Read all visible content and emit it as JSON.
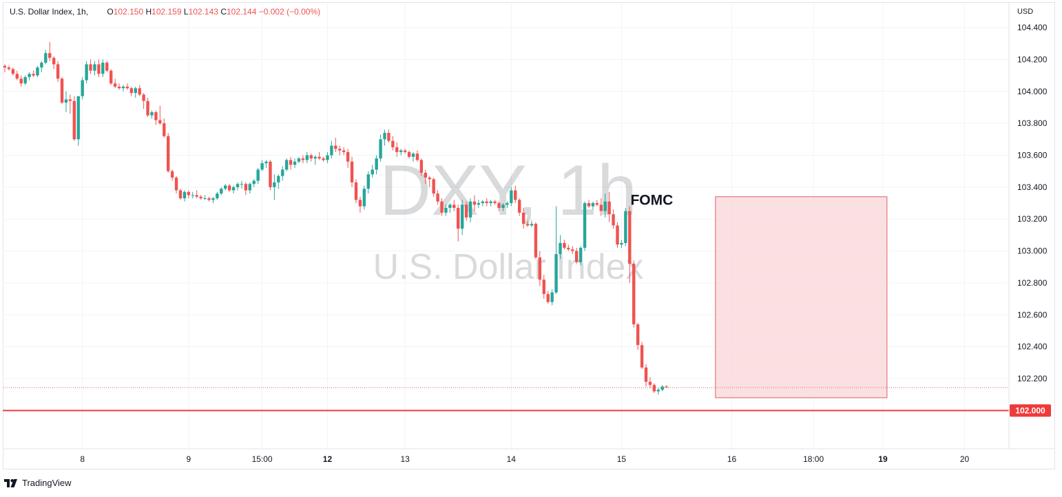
{
  "legend": {
    "symbol": "U.S. Dollar Index, 1h,",
    "o_label": "O",
    "o_value": "102.150",
    "h_label": "H",
    "h_value": "102.159",
    "l_label": "L",
    "l_value": "102.143",
    "c_label": "C",
    "c_value": "102.144",
    "change": "−0.002 (−0.00%)"
  },
  "watermark": {
    "line1": "DXY, 1h",
    "line2": "U.S. Dollar Index"
  },
  "annotation": {
    "text": "FOMC"
  },
  "branding": {
    "name": "TradingView"
  },
  "colors": {
    "up": "#26a69a",
    "down": "#ef5350",
    "support": "#ef3a3a",
    "box_fill": "#f9d6d8",
    "box_stroke": "#e06060"
  },
  "chart_data": {
    "type": "candlestick",
    "currency": "USD",
    "ylim": [
      101.76,
      104.56
    ],
    "yticks": [
      "104.400",
      "104.200",
      "104.000",
      "103.800",
      "103.600",
      "103.400",
      "103.200",
      "103.000",
      "102.800",
      "102.600",
      "102.400",
      "102.200"
    ],
    "xticks": [
      {
        "label": "8",
        "bar": 19,
        "bold": false
      },
      {
        "label": "9",
        "bar": 45,
        "bold": false
      },
      {
        "label": "15:00",
        "bar": 63,
        "bold": false
      },
      {
        "label": "12",
        "bar": 79,
        "bold": true
      },
      {
        "label": "13",
        "bar": 98,
        "bold": false
      },
      {
        "label": "14",
        "bar": 124,
        "bold": false
      },
      {
        "label": "15",
        "bar": 151,
        "bold": false
      },
      {
        "label": "16",
        "bar": 178,
        "bold": false
      },
      {
        "label": "18:00",
        "bar": 198,
        "bold": false
      },
      {
        "label": "19",
        "bar": 215,
        "bold": true
      },
      {
        "label": "20",
        "bar": 235,
        "bold": false
      }
    ],
    "support_level": {
      "value": 102.0,
      "label": "102.000"
    },
    "last_price": 102.144,
    "highlight_box": {
      "bar_start": 174,
      "bar_end": 216,
      "price_high": 103.34,
      "price_low": 102.08
    },
    "annotation_position": {
      "bar": 152,
      "price": 103.32
    },
    "series": [
      {
        "name": "DXY",
        "ohlc": [
          [
            104.16,
            104.17,
            104.12,
            104.15
          ],
          [
            104.15,
            104.16,
            104.13,
            104.14
          ],
          [
            104.14,
            104.15,
            104.1,
            104.11
          ],
          [
            104.11,
            104.13,
            104.07,
            104.08
          ],
          [
            104.08,
            104.1,
            104.03,
            104.05
          ],
          [
            104.05,
            104.1,
            104.04,
            104.09
          ],
          [
            104.09,
            104.12,
            104.07,
            104.11
          ],
          [
            104.11,
            104.13,
            104.09,
            104.1
          ],
          [
            104.1,
            104.16,
            104.09,
            104.15
          ],
          [
            104.15,
            104.19,
            104.12,
            104.18
          ],
          [
            104.18,
            104.26,
            104.17,
            104.24
          ],
          [
            104.24,
            104.31,
            104.19,
            104.21
          ],
          [
            104.21,
            104.22,
            104.14,
            104.17
          ],
          [
            104.17,
            104.19,
            104.06,
            104.08
          ],
          [
            104.08,
            104.09,
            103.92,
            103.93
          ],
          [
            103.93,
            104.0,
            103.87,
            103.95
          ],
          [
            103.95,
            103.98,
            103.86,
            103.94
          ],
          [
            103.94,
            103.97,
            103.69,
            103.7
          ],
          [
            103.7,
            103.97,
            103.66,
            103.97
          ],
          [
            103.97,
            104.09,
            103.95,
            104.07
          ],
          [
            104.07,
            104.19,
            104.05,
            104.17
          ],
          [
            104.17,
            104.2,
            104.11,
            104.13
          ],
          [
            104.13,
            104.19,
            104.1,
            104.17
          ],
          [
            104.17,
            104.2,
            104.09,
            104.11
          ],
          [
            104.11,
            104.2,
            104.09,
            104.18
          ],
          [
            104.18,
            104.19,
            104.12,
            104.13
          ],
          [
            104.13,
            104.14,
            104.04,
            104.05
          ],
          [
            104.05,
            104.08,
            104.02,
            104.03
          ],
          [
            104.03,
            104.05,
            104.01,
            104.02
          ],
          [
            104.02,
            104.04,
            104.0,
            104.03
          ],
          [
            104.03,
            104.05,
            104.01,
            104.02
          ],
          [
            104.02,
            104.03,
            103.97,
            103.99
          ],
          [
            103.99,
            104.03,
            103.96,
            104.02
          ],
          [
            104.02,
            104.04,
            103.97,
            103.98
          ],
          [
            103.98,
            103.99,
            103.89,
            103.94
          ],
          [
            103.94,
            103.96,
            103.84,
            103.85
          ],
          [
            103.85,
            103.88,
            103.83,
            103.87
          ],
          [
            103.87,
            103.88,
            103.79,
            103.82
          ],
          [
            103.82,
            103.91,
            103.79,
            103.8
          ],
          [
            103.8,
            103.83,
            103.71,
            103.72
          ],
          [
            103.72,
            103.74,
            103.49,
            103.5
          ],
          [
            103.5,
            103.51,
            103.44,
            103.46
          ],
          [
            103.46,
            103.47,
            103.36,
            103.38
          ],
          [
            103.38,
            103.39,
            103.32,
            103.33
          ],
          [
            103.33,
            103.38,
            103.31,
            103.37
          ],
          [
            103.37,
            103.38,
            103.33,
            103.35
          ],
          [
            103.35,
            103.37,
            103.33,
            103.35
          ],
          [
            103.35,
            103.38,
            103.33,
            103.34
          ],
          [
            103.34,
            103.35,
            103.32,
            103.33
          ],
          [
            103.33,
            103.35,
            103.32,
            103.33
          ],
          [
            103.33,
            103.34,
            103.31,
            103.32
          ],
          [
            103.32,
            103.34,
            103.3,
            103.33
          ],
          [
            103.33,
            103.37,
            103.32,
            103.36
          ],
          [
            103.36,
            103.4,
            103.35,
            103.39
          ],
          [
            103.39,
            103.42,
            103.38,
            103.41
          ],
          [
            103.41,
            103.42,
            103.37,
            103.38
          ],
          [
            103.38,
            103.41,
            103.36,
            103.4
          ],
          [
            103.4,
            103.43,
            103.38,
            103.42
          ],
          [
            103.42,
            103.44,
            103.39,
            103.42
          ],
          [
            103.42,
            103.43,
            103.35,
            103.38
          ],
          [
            103.38,
            103.43,
            103.36,
            103.42
          ],
          [
            103.42,
            103.45,
            103.4,
            103.44
          ],
          [
            103.44,
            103.52,
            103.42,
            103.51
          ],
          [
            103.51,
            103.57,
            103.5,
            103.55
          ],
          [
            103.55,
            103.57,
            103.52,
            103.56
          ],
          [
            103.56,
            103.57,
            103.38,
            103.4
          ],
          [
            103.4,
            103.48,
            103.32,
            103.43
          ],
          [
            103.43,
            103.48,
            103.39,
            103.47
          ],
          [
            103.47,
            103.53,
            103.44,
            103.51
          ],
          [
            103.51,
            103.58,
            103.5,
            103.57
          ],
          [
            103.57,
            103.59,
            103.51,
            103.54
          ],
          [
            103.54,
            103.58,
            103.52,
            103.56
          ],
          [
            103.56,
            103.59,
            103.55,
            103.58
          ],
          [
            103.58,
            103.6,
            103.55,
            103.57
          ],
          [
            103.57,
            103.62,
            103.55,
            103.6
          ],
          [
            103.6,
            103.61,
            103.56,
            103.58
          ],
          [
            103.58,
            103.6,
            103.54,
            103.59
          ],
          [
            103.59,
            103.62,
            103.57,
            103.58
          ],
          [
            103.58,
            103.59,
            103.56,
            103.57
          ],
          [
            103.57,
            103.62,
            103.55,
            103.6
          ],
          [
            103.6,
            103.69,
            103.58,
            103.66
          ],
          [
            103.66,
            103.71,
            103.62,
            103.64
          ],
          [
            103.64,
            103.66,
            103.6,
            103.63
          ],
          [
            103.63,
            103.65,
            103.6,
            103.62
          ],
          [
            103.62,
            103.64,
            103.52,
            103.56
          ],
          [
            103.56,
            103.59,
            103.4,
            103.43
          ],
          [
            103.43,
            103.45,
            103.3,
            103.32
          ],
          [
            103.32,
            103.34,
            103.24,
            103.28
          ],
          [
            103.28,
            103.41,
            103.26,
            103.39
          ],
          [
            103.39,
            103.5,
            103.36,
            103.48
          ],
          [
            103.48,
            103.54,
            103.46,
            103.51
          ],
          [
            103.51,
            103.6,
            103.48,
            103.58
          ],
          [
            103.58,
            103.73,
            103.56,
            103.7
          ],
          [
            103.7,
            103.76,
            103.66,
            103.74
          ],
          [
            103.74,
            103.76,
            103.68,
            103.69
          ],
          [
            103.69,
            103.72,
            103.63,
            103.65
          ],
          [
            103.65,
            103.68,
            103.59,
            103.62
          ],
          [
            103.62,
            103.64,
            103.6,
            103.63
          ],
          [
            103.63,
            103.64,
            103.61,
            103.62
          ],
          [
            103.62,
            103.63,
            103.58,
            103.59
          ],
          [
            103.59,
            103.62,
            103.56,
            103.61
          ],
          [
            103.61,
            103.63,
            103.56,
            103.57
          ],
          [
            103.57,
            103.58,
            103.47,
            103.49
          ],
          [
            103.49,
            103.51,
            103.42,
            103.46
          ],
          [
            103.46,
            103.47,
            103.4,
            103.45
          ],
          [
            103.45,
            103.46,
            103.34,
            103.36
          ],
          [
            103.36,
            103.38,
            103.29,
            103.31
          ],
          [
            103.31,
            103.33,
            103.22,
            103.24
          ],
          [
            103.24,
            103.29,
            103.22,
            103.27
          ],
          [
            103.27,
            103.3,
            103.24,
            103.29
          ],
          [
            103.29,
            103.32,
            103.25,
            103.27
          ],
          [
            103.27,
            103.29,
            103.06,
            103.14
          ],
          [
            103.14,
            103.32,
            103.1,
            103.29
          ],
          [
            103.29,
            103.31,
            103.19,
            103.21
          ],
          [
            103.21,
            103.33,
            103.18,
            103.31
          ],
          [
            103.31,
            103.35,
            103.25,
            103.29
          ],
          [
            103.29,
            103.32,
            103.27,
            103.3
          ],
          [
            103.3,
            103.32,
            103.28,
            103.31
          ],
          [
            103.31,
            103.33,
            103.28,
            103.3
          ],
          [
            103.3,
            103.32,
            103.28,
            103.31
          ],
          [
            103.31,
            103.32,
            103.29,
            103.3
          ],
          [
            103.3,
            103.31,
            103.25,
            103.27
          ],
          [
            103.27,
            103.3,
            103.25,
            103.29
          ],
          [
            103.29,
            103.31,
            103.27,
            103.3
          ],
          [
            103.3,
            103.4,
            103.28,
            103.38
          ],
          [
            103.38,
            103.41,
            103.3,
            103.32
          ],
          [
            103.32,
            103.33,
            103.22,
            103.24
          ],
          [
            103.24,
            103.27,
            103.14,
            103.17
          ],
          [
            103.17,
            103.19,
            103.15,
            103.16
          ],
          [
            103.16,
            103.19,
            103.15,
            103.17
          ],
          [
            103.17,
            103.18,
            102.95,
            102.96
          ],
          [
            102.96,
            103.0,
            102.78,
            102.82
          ],
          [
            102.82,
            102.85,
            102.7,
            102.73
          ],
          [
            102.73,
            102.75,
            102.67,
            102.68
          ],
          [
            102.68,
            102.76,
            102.66,
            102.74
          ],
          [
            102.74,
            103.28,
            102.73,
            102.98
          ],
          [
            102.98,
            103.1,
            102.95,
            103.05
          ],
          [
            103.05,
            103.07,
            103.01,
            103.02
          ],
          [
            103.02,
            103.04,
            103.0,
            103.01
          ],
          [
            103.01,
            103.03,
            102.98,
            103.0
          ],
          [
            103.0,
            103.02,
            102.92,
            102.93
          ],
          [
            102.93,
            103.03,
            102.91,
            103.02
          ],
          [
            103.02,
            103.31,
            103.0,
            103.3
          ],
          [
            103.3,
            103.32,
            103.27,
            103.28
          ],
          [
            103.28,
            103.31,
            103.26,
            103.3
          ],
          [
            103.3,
            103.32,
            103.28,
            103.29
          ],
          [
            103.29,
            103.33,
            103.22,
            103.25
          ],
          [
            103.25,
            103.36,
            103.21,
            103.31
          ],
          [
            103.31,
            103.37,
            103.18,
            103.23
          ],
          [
            103.23,
            103.26,
            103.14,
            103.16
          ],
          [
            103.16,
            103.18,
            103.02,
            103.04
          ],
          [
            103.04,
            103.07,
            103.02,
            103.05
          ],
          [
            103.05,
            103.27,
            103.03,
            103.25
          ],
          [
            103.25,
            103.28,
            102.8,
            102.92
          ],
          [
            102.92,
            102.94,
            102.52,
            102.54
          ],
          [
            102.54,
            102.55,
            102.38,
            102.41
          ],
          [
            102.41,
            102.43,
            102.26,
            102.27
          ],
          [
            102.27,
            102.29,
            102.15,
            102.18
          ],
          [
            102.18,
            102.21,
            102.14,
            102.16
          ],
          [
            102.16,
            102.17,
            102.11,
            102.12
          ],
          [
            102.12,
            102.14,
            102.1,
            102.13
          ],
          [
            102.13,
            102.16,
            102.12,
            102.15
          ],
          [
            102.15,
            102.159,
            102.143,
            102.144
          ]
        ]
      }
    ]
  }
}
